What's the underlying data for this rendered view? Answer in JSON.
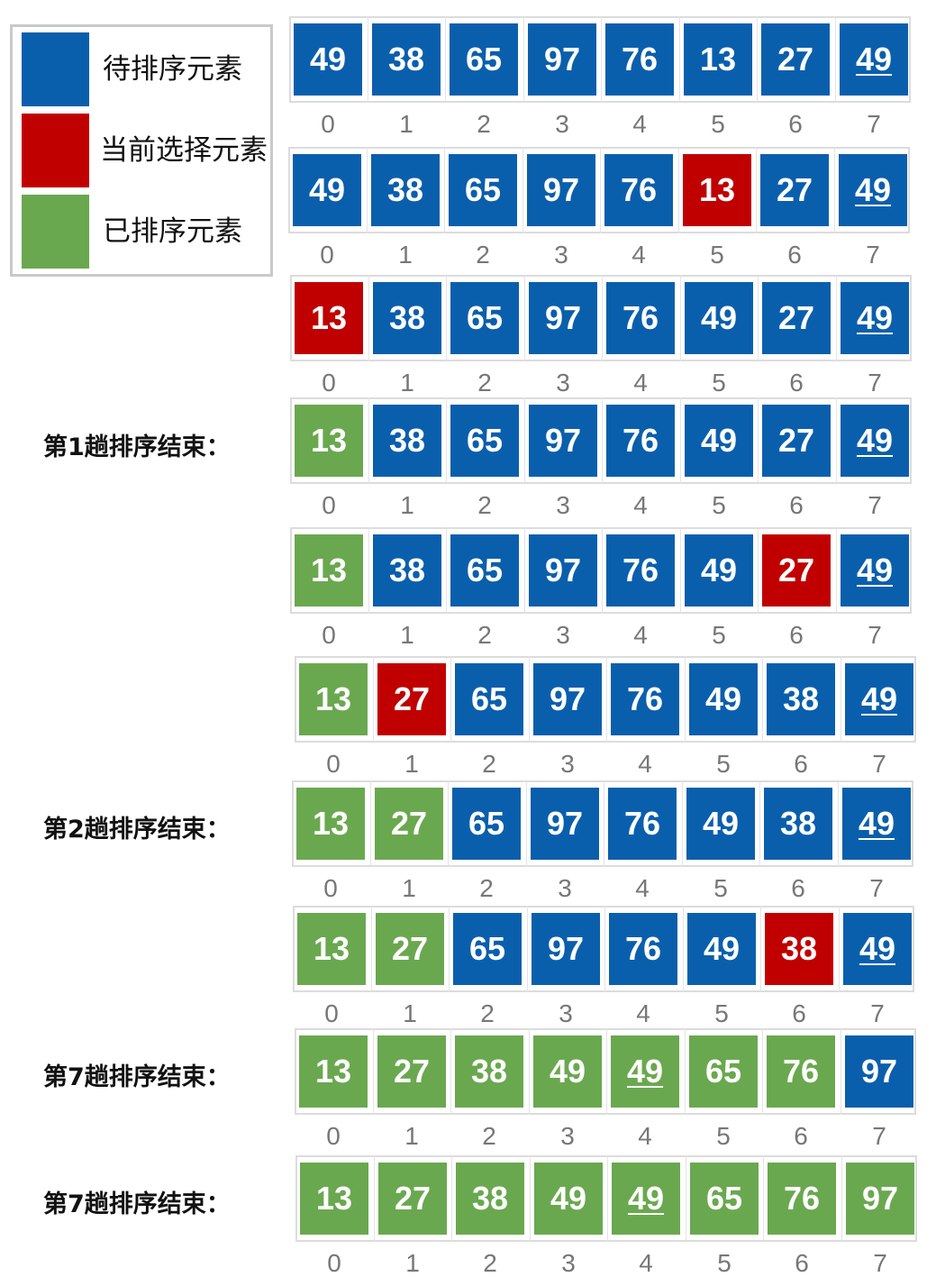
{
  "colors": {
    "pending": "#0a5fac",
    "current": "#c00000",
    "sorted": "#6aa84f"
  },
  "legend": {
    "items": [
      {
        "key": "pending",
        "label": "待排序元素"
      },
      {
        "key": "current",
        "label": "当前选择元素"
      },
      {
        "key": "sorted",
        "label": "已排序元素"
      }
    ]
  },
  "steps": [
    {
      "label": "",
      "values": [
        49,
        38,
        65,
        97,
        76,
        13,
        27,
        49
      ],
      "states": [
        "p",
        "p",
        "p",
        "p",
        "p",
        "p",
        "p",
        "p"
      ],
      "dup_index": 7,
      "indices": [
        "0",
        "1",
        "2",
        "3",
        "4",
        "5",
        "6",
        "7"
      ]
    },
    {
      "label": "",
      "values": [
        49,
        38,
        65,
        97,
        76,
        13,
        27,
        49
      ],
      "states": [
        "p",
        "p",
        "p",
        "p",
        "p",
        "c",
        "p",
        "p"
      ],
      "dup_index": 7,
      "indices": [
        "0",
        "1",
        "2",
        "3",
        "4",
        "5",
        "6",
        "7"
      ]
    },
    {
      "label": "",
      "values": [
        13,
        38,
        65,
        97,
        76,
        49,
        27,
        49
      ],
      "states": [
        "c",
        "p",
        "p",
        "p",
        "p",
        "p",
        "p",
        "p"
      ],
      "dup_index": 7,
      "indices": [
        "0",
        "1",
        "2",
        "3",
        "4",
        "5",
        "6",
        "7"
      ]
    },
    {
      "label": "第1趟排序结束：",
      "values": [
        13,
        38,
        65,
        97,
        76,
        49,
        27,
        49
      ],
      "states": [
        "s",
        "p",
        "p",
        "p",
        "p",
        "p",
        "p",
        "p"
      ],
      "dup_index": 7,
      "indices": [
        "0",
        "1",
        "2",
        "3",
        "4",
        "5",
        "6",
        "7"
      ]
    },
    {
      "label": "",
      "values": [
        13,
        38,
        65,
        97,
        76,
        49,
        27,
        49
      ],
      "states": [
        "s",
        "p",
        "p",
        "p",
        "p",
        "p",
        "c",
        "p"
      ],
      "dup_index": 7,
      "indices": [
        "0",
        "1",
        "2",
        "3",
        "4",
        "5",
        "6",
        "7"
      ]
    },
    {
      "label": "",
      "values": [
        13,
        27,
        65,
        97,
        76,
        49,
        38,
        49
      ],
      "states": [
        "s",
        "c",
        "p",
        "p",
        "p",
        "p",
        "p",
        "p"
      ],
      "dup_index": 7,
      "indices": [
        "0",
        "1",
        "2",
        "3",
        "4",
        "5",
        "6",
        "7"
      ]
    },
    {
      "label": "第2趟排序结束：",
      "values": [
        13,
        27,
        65,
        97,
        76,
        49,
        38,
        49
      ],
      "states": [
        "s",
        "s",
        "p",
        "p",
        "p",
        "p",
        "p",
        "p"
      ],
      "dup_index": 7,
      "indices": [
        "0",
        "1",
        "2",
        "3",
        "4",
        "5",
        "6",
        "7"
      ]
    },
    {
      "label": "",
      "values": [
        13,
        27,
        65,
        97,
        76,
        49,
        38,
        49
      ],
      "states": [
        "s",
        "s",
        "p",
        "p",
        "p",
        "p",
        "c",
        "p"
      ],
      "dup_index": 7,
      "indices": [
        "0",
        "1",
        "2",
        "3",
        "4",
        "5",
        "6",
        "7"
      ]
    },
    {
      "label": "第7趟排序结束：",
      "values": [
        13,
        27,
        38,
        49,
        49,
        65,
        76,
        97
      ],
      "states": [
        "s",
        "s",
        "s",
        "s",
        "s",
        "s",
        "s",
        "p"
      ],
      "dup_index": 4,
      "indices": [
        "0",
        "1",
        "2",
        "3",
        "4",
        "5",
        "6",
        "7"
      ]
    },
    {
      "label": "第7趟排序结束：",
      "values": [
        13,
        27,
        38,
        49,
        49,
        65,
        76,
        97
      ],
      "states": [
        "s",
        "s",
        "s",
        "s",
        "s",
        "s",
        "s",
        "s"
      ],
      "dup_index": 4,
      "indices": [
        "0",
        "1",
        "2",
        "3",
        "4",
        "5",
        "6",
        "7"
      ]
    }
  ]
}
